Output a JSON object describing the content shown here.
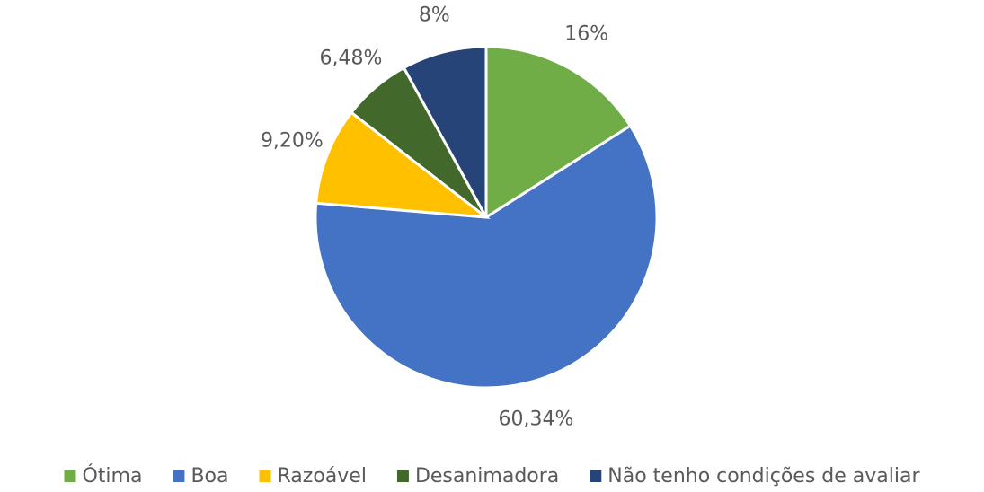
{
  "chart_data": {
    "type": "pie",
    "categories": [
      "Ótima",
      "Boa",
      "Razoável",
      "Desanimadora",
      "Não tenho condições de avaliar"
    ],
    "values": [
      16,
      60.34,
      9.2,
      6.48,
      8
    ],
    "value_labels": [
      "16%",
      "60,34%",
      "9,20%",
      "6,48%",
      "8%"
    ],
    "colors": [
      "#70ad47",
      "#4472c4",
      "#ffc000",
      "#43682b",
      "#264478"
    ],
    "legend": "bottom"
  }
}
